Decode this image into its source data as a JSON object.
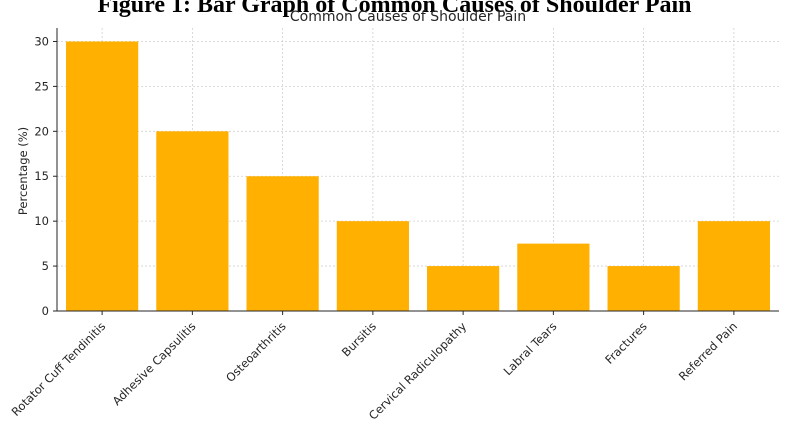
{
  "figure_heading": "Figure 1: Bar Graph of Common Causes of Shoulder Pain",
  "chart_data": {
    "type": "bar",
    "title": "Common Causes of Shoulder Pain",
    "xlabel": "",
    "ylabel": "Percentage (%)",
    "categories": [
      "Rotator Cuff Tendinitis",
      "Adhesive Capsulitis",
      "Osteoarthritis",
      "Bursitis",
      "Cervical Radiculopathy",
      "Labral Tears",
      "Fractures",
      "Referred Pain"
    ],
    "values": [
      30,
      20,
      15,
      10,
      5,
      7.5,
      5,
      10
    ],
    "ylim": [
      0,
      31.5
    ],
    "yticks": [
      0,
      5,
      10,
      15,
      20,
      25,
      30
    ],
    "bar_color": "#ffb000",
    "grid": true,
    "legend": "none"
  }
}
